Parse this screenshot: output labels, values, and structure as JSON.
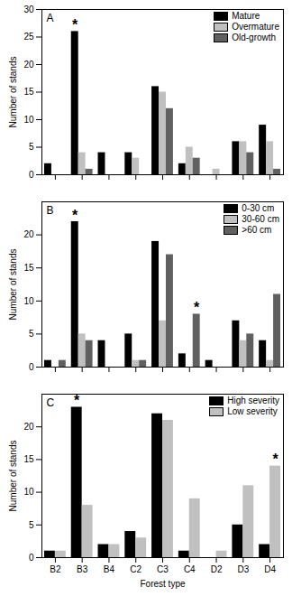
{
  "chart_data": [
    {
      "type": "bar",
      "title": "A",
      "categories": [
        "B2",
        "B3",
        "B4",
        "C2",
        "C3",
        "C4",
        "D2",
        "D3",
        "D4"
      ],
      "series": [
        {
          "name": "Mature",
          "color": "#000000",
          "values": [
            2,
            26,
            4,
            4,
            16,
            2,
            0,
            6,
            9
          ]
        },
        {
          "name": "Overmature",
          "color": "#c0c0c0",
          "values": [
            0,
            4,
            0,
            3,
            15,
            5,
            1,
            6,
            6
          ]
        },
        {
          "name": "Old-growth",
          "color": "#606060",
          "values": [
            0,
            1,
            0,
            0,
            12,
            3,
            0,
            4,
            1
          ]
        }
      ],
      "y_label": "Number of stands",
      "ylim": [
        0,
        30
      ],
      "yticks": [
        0,
        5,
        10,
        15,
        20,
        25,
        30
      ],
      "legend": "top-right",
      "tick_labels": "y",
      "annotations": [
        {
          "text": "*",
          "category": "B3",
          "series": "Mature"
        }
      ]
    },
    {
      "type": "bar",
      "title": "B",
      "categories": [
        "B2",
        "B3",
        "B4",
        "C2",
        "C3",
        "C4",
        "D2",
        "D3",
        "D4"
      ],
      "series": [
        {
          "name": "0-30 cm",
          "color": "#000000",
          "values": [
            1,
            22,
            4,
            5,
            19,
            2,
            1,
            7,
            4
          ]
        },
        {
          "name": "30-60 cm",
          "color": "#c0c0c0",
          "values": [
            0,
            5,
            0,
            1,
            7,
            0,
            0,
            4,
            1
          ]
        },
        {
          "name": ">60 cm",
          "color": "#606060",
          "values": [
            1,
            4,
            0,
            1,
            17,
            8,
            0,
            5,
            11
          ]
        }
      ],
      "y_label": "Number of stands",
      "ylim": [
        0,
        25
      ],
      "yticks": [
        0,
        5,
        10,
        15,
        20
      ],
      "legend": "top-right",
      "tick_labels": "y",
      "annotations": [
        {
          "text": "*",
          "category": "B3",
          "series": "0-30 cm"
        },
        {
          "text": "*",
          "category": "C4",
          "series": ">60 cm"
        }
      ]
    },
    {
      "type": "bar",
      "title": "C",
      "categories": [
        "B2",
        "B3",
        "B4",
        "C2",
        "C3",
        "C4",
        "D2",
        "D3",
        "D4"
      ],
      "series": [
        {
          "name": "High severity",
          "color": "#000000",
          "values": [
            1,
            23,
            2,
            4,
            22,
            1,
            0,
            5,
            2
          ]
        },
        {
          "name": "Low severity",
          "color": "#c0c0c0",
          "values": [
            1,
            8,
            2,
            3,
            21,
            9,
            1,
            11,
            14
          ]
        }
      ],
      "x_label": "Forest type",
      "y_label": "Number of stands",
      "ylim": [
        0,
        25
      ],
      "yticks": [
        0,
        5,
        10,
        15,
        20
      ],
      "legend": "top-right",
      "annotations": [
        {
          "text": "*",
          "category": "B3",
          "series": "High severity"
        },
        {
          "text": "*",
          "category": "D4",
          "series": "Low severity"
        }
      ]
    }
  ]
}
